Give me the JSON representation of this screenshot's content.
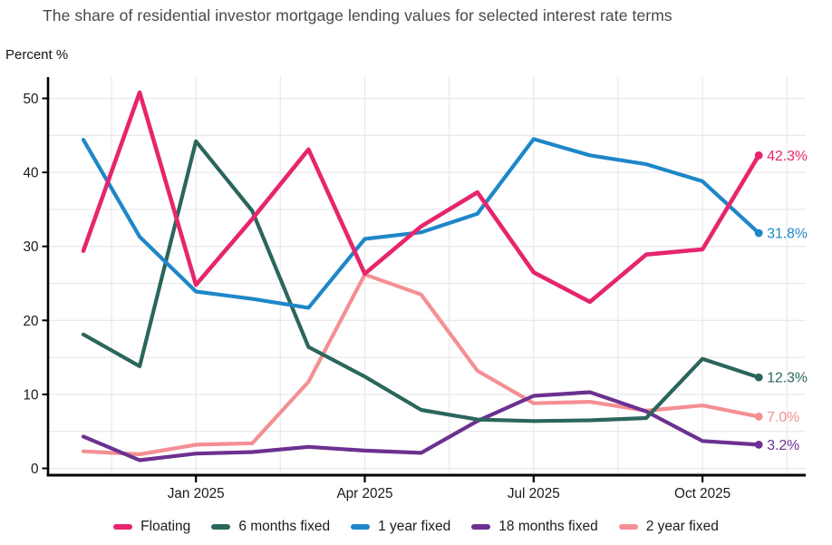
{
  "title": "The share of residential investor mortgage lending values for selected interest rate terms",
  "y_axis_unit": "Percent %",
  "chart_data": {
    "type": "line",
    "x": [
      "Nov 2024",
      "Dec 2024",
      "Jan 2025",
      "Feb 2025",
      "Mar 2025",
      "Apr 2025",
      "May 2025",
      "Jun 2025",
      "Jul 2025",
      "Aug 2025",
      "Sep 2025",
      "Oct 2025",
      "Nov 2025"
    ],
    "x_tick_labels": [
      "Jan 2025",
      "Apr 2025",
      "Jul 2025",
      "Oct 2025"
    ],
    "x_tick_indices": [
      2,
      5,
      8,
      11
    ],
    "y_ticks": [
      0,
      10,
      20,
      30,
      40,
      50
    ],
    "y_tick_labels": [
      "0",
      "10",
      "20",
      "30",
      "40",
      "50"
    ],
    "ylim": [
      0,
      50
    ],
    "grid": {
      "h_step": 5,
      "v_indices": [
        0.5,
        2,
        3.5,
        5,
        6.5,
        8,
        9.5,
        11,
        12.5
      ]
    },
    "legend_position": "bottom",
    "draw_order": [
      4,
      3,
      1,
      2,
      0
    ],
    "series": [
      {
        "name": "Floating",
        "slug": "floating",
        "color": "#E6256D",
        "end_label": "42.3%",
        "values": [
          29.4,
          50.8,
          24.8,
          33.7,
          43.1,
          26.3,
          32.7,
          37.3,
          26.5,
          22.5,
          28.9,
          29.6,
          42.3
        ]
      },
      {
        "name": "6 months fixed",
        "slug": "6-months-fixed",
        "color": "#2A665C",
        "end_label": "12.3%",
        "values": [
          18.1,
          13.8,
          44.2,
          34.8,
          16.4,
          12.4,
          7.9,
          6.6,
          6.4,
          6.5,
          6.8,
          14.8,
          12.3
        ]
      },
      {
        "name": "1 year fixed",
        "slug": "1-year-fixed",
        "color": "#1E87C8",
        "end_label": "31.8%",
        "values": [
          44.4,
          31.3,
          23.9,
          22.9,
          21.7,
          31.0,
          31.9,
          34.4,
          44.5,
          42.3,
          41.1,
          38.8,
          31.8
        ]
      },
      {
        "name": "18 months fixed",
        "slug": "18-months-fixed",
        "color": "#6C3190",
        "end_label": "3.2%",
        "values": [
          4.3,
          1.1,
          2.0,
          2.2,
          2.9,
          2.4,
          2.1,
          6.4,
          9.8,
          10.3,
          7.7,
          3.7,
          3.2
        ]
      },
      {
        "name": "2 year fixed",
        "slug": "2-year-fixed",
        "color": "#F48F94",
        "end_label": "7.0%",
        "values": [
          2.3,
          1.9,
          3.2,
          3.4,
          11.7,
          26.2,
          23.5,
          13.2,
          8.8,
          9.0,
          7.8,
          8.5,
          7.0
        ]
      }
    ]
  },
  "colors": {
    "grid": "#EAEAEC",
    "axis": "#000000",
    "title_text": "#45494d",
    "tick_text": "#1a1a1a"
  }
}
